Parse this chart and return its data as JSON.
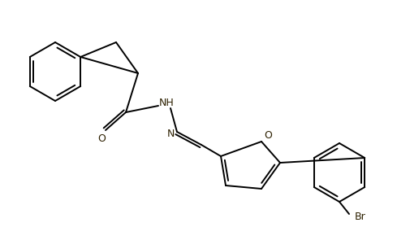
{
  "bg_color": "#ffffff",
  "line_color": "#000000",
  "text_color": "#2d2000",
  "label_NH": "NH",
  "label_N": "N",
  "label_O_carbonyl": "O",
  "label_O_furan": "O",
  "label_Br": "Br",
  "line_width": 1.4,
  "figsize": [
    5.05,
    2.79
  ],
  "dpi": 100
}
